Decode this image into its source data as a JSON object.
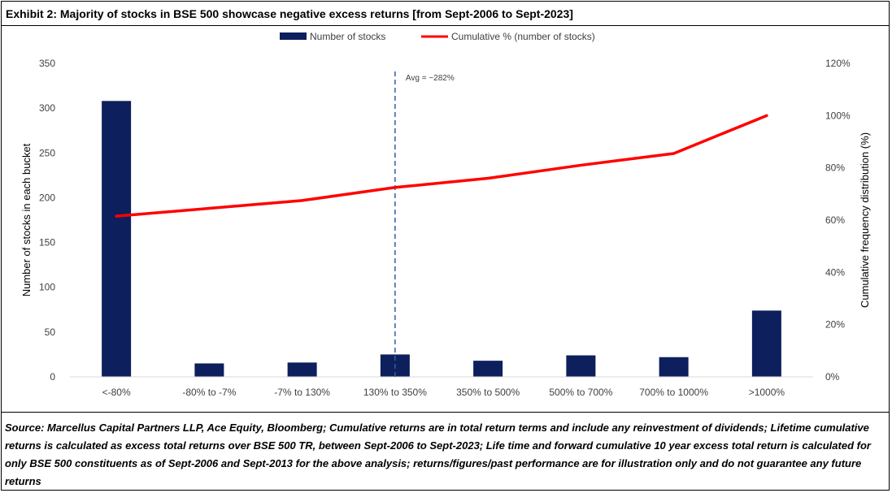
{
  "title": "Exhibit 2: Majority of stocks in BSE 500 showcase negative excess returns [from Sept-2006 to Sept-2023]",
  "source_note": "Source: Marcellus Capital Partners LLP, Ace Equity, Bloomberg; Cumulative returns are in total return terms and include any reinvestment of dividends; Lifetime cumulative returns is calculated as excess total returns over BSE 500 TR, between Sept-2006 to Sept-2023; Life time and forward cumulative 10 year excess total return is calculated for only BSE 500 constituents as of Sept-2006 and Sept-2013 for the above analysis; returns/figures/past performance are for illustration only and do not guarantee any future returns",
  "chart_data": {
    "type": "bar",
    "categories": [
      "<-80%",
      "-80% to -7%",
      "-7% to 130%",
      "130% to 350%",
      "350% to 500%",
      "500% to 700%",
      "700% to 1000%",
      ">1000%"
    ],
    "series": [
      {
        "name": "Number of stocks",
        "type": "bar",
        "axis": "left",
        "color": "#0d1f5c",
        "values": [
          308,
          15,
          16,
          25,
          18,
          24,
          22,
          74
        ]
      },
      {
        "name": "Cumulative % (number of stocks)",
        "type": "line",
        "axis": "right",
        "color": "#ff0000",
        "values": [
          61.5,
          64.5,
          67.5,
          72.5,
          76,
          81,
          85.5,
          100
        ]
      }
    ],
    "ylabel": "Number of stocks in each bucket",
    "y2label": "Cumulative frequency distribution (%)",
    "ylim": [
      0,
      350
    ],
    "y2lim": [
      0,
      120
    ],
    "yticks": [
      "0",
      "50",
      "100",
      "150",
      "200",
      "250",
      "300",
      "350"
    ],
    "y2ticks": [
      "0%",
      "20%",
      "40%",
      "60%",
      "80%",
      "100%",
      "120%"
    ],
    "annotation": {
      "text": "Avg = ~282%",
      "category": "130% to 350%"
    },
    "legend_position": "top",
    "grid": false
  }
}
